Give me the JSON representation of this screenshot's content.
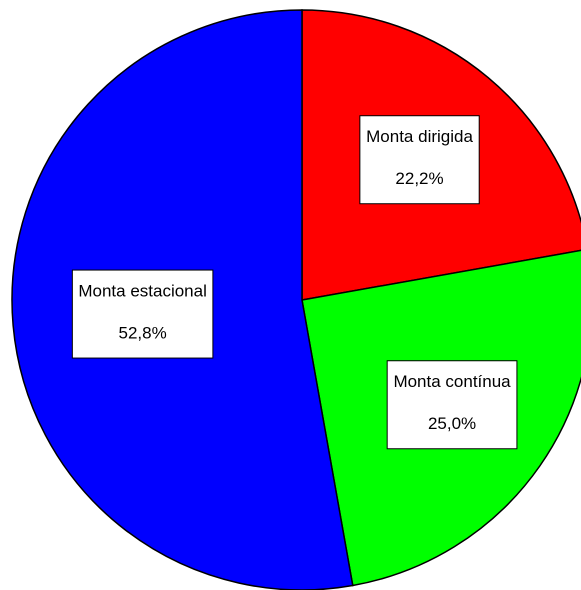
{
  "chart_data": {
    "type": "pie",
    "categories": [
      "Monta dirigida",
      "Monta contínua",
      "Monta estacional"
    ],
    "values": [
      22.2,
      25.0,
      52.8
    ],
    "value_labels": [
      "22,2%",
      "25,0%",
      "52,8%"
    ],
    "colors": [
      "#ff0000",
      "#00ff00",
      "#0000ff"
    ]
  }
}
